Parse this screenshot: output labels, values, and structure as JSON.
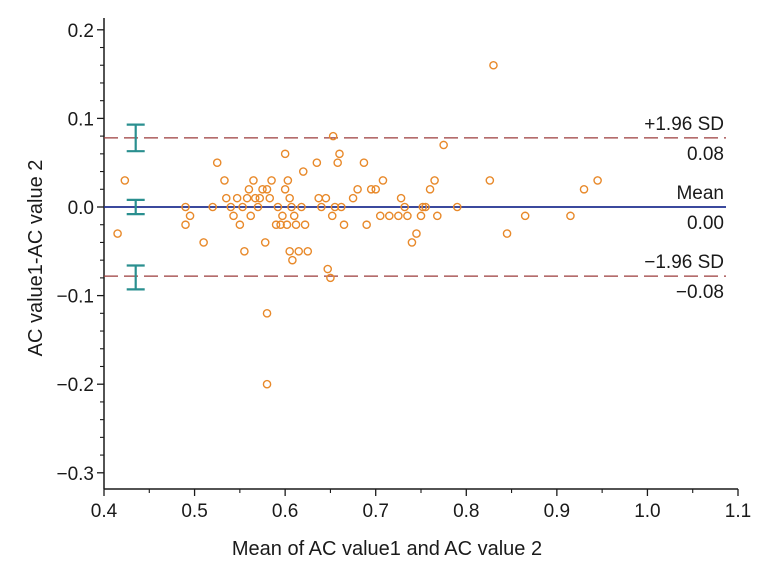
{
  "chart_data": {
    "type": "scatter",
    "title": "",
    "xlabel": "Mean of AC value1 and AC value 2",
    "ylabel": "AC value1-AC value 2",
    "xlim": [
      0.4,
      1.1
    ],
    "ylim": [
      -0.31,
      0.21
    ],
    "x_ticks": [
      "0.4",
      "0.5",
      "0.6",
      "0.7",
      "0.8",
      "0.9",
      "1.0",
      "1.1"
    ],
    "y_ticks": [
      "0.2",
      "0.1",
      "0.0",
      "−0.1",
      "−0.2",
      "−0.3"
    ],
    "grid": false,
    "colors": {
      "points": "#e8892a",
      "mean_line": "#1f2f8f",
      "limit_lines": "#9b3b3b",
      "ci_bars": "#2a8f8f",
      "axis": "#1a1a1a"
    },
    "reference_lines": [
      {
        "label": "+1.96 SD",
        "value_label": "0.08",
        "value": 0.078,
        "style": "dashed"
      },
      {
        "label": "Mean",
        "value_label": "0.00",
        "value": 0.0,
        "style": "solid"
      },
      {
        "label": "−1.96 SD",
        "value_label": "−0.08",
        "value": -0.078,
        "style": "dashed"
      }
    ],
    "confidence_intervals": [
      {
        "x": 0.435,
        "low": 0.063,
        "high": 0.093
      },
      {
        "x": 0.435,
        "low": -0.008,
        "high": 0.008
      },
      {
        "x": 0.435,
        "low": -0.093,
        "high": -0.066
      }
    ],
    "points": [
      {
        "x": 0.415,
        "y": -0.03
      },
      {
        "x": 0.423,
        "y": 0.03
      },
      {
        "x": 0.49,
        "y": 0.0
      },
      {
        "x": 0.49,
        "y": -0.02
      },
      {
        "x": 0.495,
        "y": -0.01
      },
      {
        "x": 0.51,
        "y": -0.04
      },
      {
        "x": 0.52,
        "y": 0.0
      },
      {
        "x": 0.525,
        "y": 0.05
      },
      {
        "x": 0.533,
        "y": 0.03
      },
      {
        "x": 0.535,
        "y": 0.01
      },
      {
        "x": 0.54,
        "y": 0.0
      },
      {
        "x": 0.543,
        "y": -0.01
      },
      {
        "x": 0.547,
        "y": 0.01
      },
      {
        "x": 0.55,
        "y": -0.02
      },
      {
        "x": 0.553,
        "y": 0.0
      },
      {
        "x": 0.555,
        "y": -0.05
      },
      {
        "x": 0.558,
        "y": 0.01
      },
      {
        "x": 0.56,
        "y": 0.02
      },
      {
        "x": 0.562,
        "y": -0.01
      },
      {
        "x": 0.565,
        "y": 0.03
      },
      {
        "x": 0.567,
        "y": 0.01
      },
      {
        "x": 0.57,
        "y": 0.0
      },
      {
        "x": 0.572,
        "y": 0.01
      },
      {
        "x": 0.575,
        "y": 0.02
      },
      {
        "x": 0.578,
        "y": -0.04
      },
      {
        "x": 0.58,
        "y": 0.02
      },
      {
        "x": 0.58,
        "y": -0.12
      },
      {
        "x": 0.58,
        "y": -0.2
      },
      {
        "x": 0.583,
        "y": 0.01
      },
      {
        "x": 0.585,
        "y": 0.03
      },
      {
        "x": 0.59,
        "y": -0.02
      },
      {
        "x": 0.592,
        "y": 0.0
      },
      {
        "x": 0.595,
        "y": -0.02
      },
      {
        "x": 0.597,
        "y": -0.01
      },
      {
        "x": 0.6,
        "y": 0.06
      },
      {
        "x": 0.6,
        "y": 0.02
      },
      {
        "x": 0.602,
        "y": -0.02
      },
      {
        "x": 0.603,
        "y": 0.03
      },
      {
        "x": 0.605,
        "y": 0.01
      },
      {
        "x": 0.605,
        "y": -0.05
      },
      {
        "x": 0.607,
        "y": 0.0
      },
      {
        "x": 0.608,
        "y": -0.06
      },
      {
        "x": 0.61,
        "y": -0.01
      },
      {
        "x": 0.612,
        "y": -0.02
      },
      {
        "x": 0.615,
        "y": -0.05
      },
      {
        "x": 0.618,
        "y": 0.0
      },
      {
        "x": 0.62,
        "y": 0.04
      },
      {
        "x": 0.622,
        "y": -0.02
      },
      {
        "x": 0.625,
        "y": -0.05
      },
      {
        "x": 0.635,
        "y": 0.05
      },
      {
        "x": 0.637,
        "y": 0.01
      },
      {
        "x": 0.64,
        "y": 0.0
      },
      {
        "x": 0.645,
        "y": 0.01
      },
      {
        "x": 0.647,
        "y": -0.07
      },
      {
        "x": 0.65,
        "y": -0.08
      },
      {
        "x": 0.652,
        "y": -0.01
      },
      {
        "x": 0.653,
        "y": 0.08
      },
      {
        "x": 0.655,
        "y": 0.0
      },
      {
        "x": 0.658,
        "y": 0.05
      },
      {
        "x": 0.66,
        "y": 0.06
      },
      {
        "x": 0.662,
        "y": 0.0
      },
      {
        "x": 0.665,
        "y": -0.02
      },
      {
        "x": 0.675,
        "y": 0.01
      },
      {
        "x": 0.68,
        "y": 0.02
      },
      {
        "x": 0.687,
        "y": 0.05
      },
      {
        "x": 0.69,
        "y": -0.02
      },
      {
        "x": 0.695,
        "y": 0.02
      },
      {
        "x": 0.7,
        "y": 0.02
      },
      {
        "x": 0.705,
        "y": -0.01
      },
      {
        "x": 0.708,
        "y": 0.03
      },
      {
        "x": 0.715,
        "y": -0.01
      },
      {
        "x": 0.725,
        "y": -0.01
      },
      {
        "x": 0.728,
        "y": 0.01
      },
      {
        "x": 0.732,
        "y": 0.0
      },
      {
        "x": 0.735,
        "y": -0.01
      },
      {
        "x": 0.74,
        "y": -0.04
      },
      {
        "x": 0.745,
        "y": -0.03
      },
      {
        "x": 0.75,
        "y": -0.01
      },
      {
        "x": 0.752,
        "y": 0.0
      },
      {
        "x": 0.755,
        "y": 0.0
      },
      {
        "x": 0.76,
        "y": 0.02
      },
      {
        "x": 0.765,
        "y": 0.03
      },
      {
        "x": 0.768,
        "y": -0.01
      },
      {
        "x": 0.775,
        "y": 0.07
      },
      {
        "x": 0.79,
        "y": 0.0
      },
      {
        "x": 0.826,
        "y": 0.03
      },
      {
        "x": 0.83,
        "y": 0.16
      },
      {
        "x": 0.845,
        "y": -0.03
      },
      {
        "x": 0.865,
        "y": -0.01
      },
      {
        "x": 0.915,
        "y": -0.01
      },
      {
        "x": 0.93,
        "y": 0.02
      },
      {
        "x": 0.945,
        "y": 0.03
      }
    ]
  }
}
